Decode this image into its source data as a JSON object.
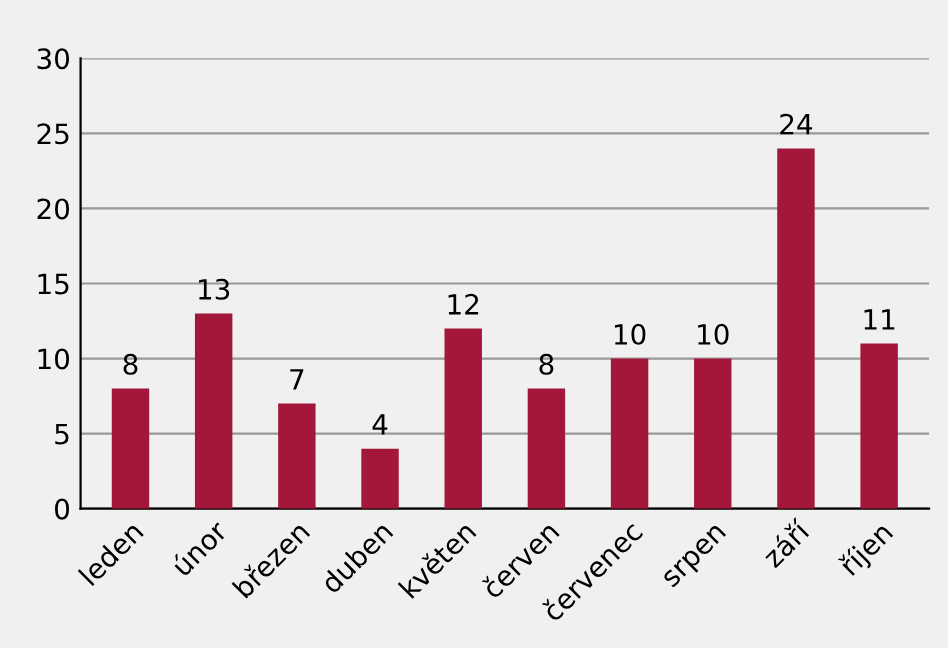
{
  "chart_data": {
    "type": "bar",
    "categories": [
      "leden",
      "únor",
      "březen",
      "duben",
      "květen",
      "červen",
      "červenec",
      "srpen",
      "září",
      "říjen"
    ],
    "values": [
      8,
      13,
      7,
      4,
      12,
      8,
      10,
      10,
      24,
      11
    ],
    "color": "#a3173a",
    "ylim": [
      0,
      30
    ],
    "yticks": [
      0,
      5,
      10,
      15,
      20,
      25,
      30
    ],
    "grid": "y",
    "data_labels": true
  }
}
